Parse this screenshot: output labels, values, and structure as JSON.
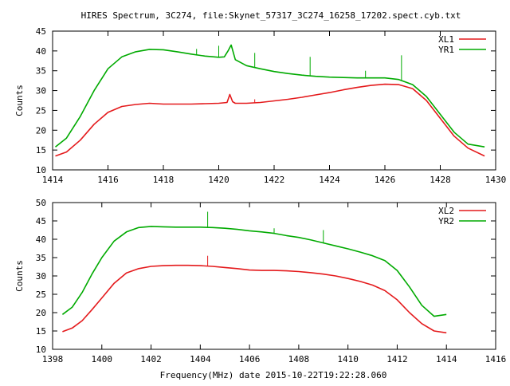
{
  "title": "HIRES Spectrum, 3C274, file:Skynet_57317_3C274_16258_17202.spect.cyb.txt",
  "xlabel": "Frequency(MHz) date 2015-10-22T19:22:28.060",
  "chart_data": [
    {
      "type": "line",
      "title": "HIRES Spectrum, 3C274, file:Skynet_57317_3C274_16258_17202.spect.cyb.txt",
      "xlabel": "",
      "ylabel": "Counts",
      "xlim": [
        1414,
        1430
      ],
      "ylim": [
        10,
        45
      ],
      "xticks": [
        1414,
        1416,
        1418,
        1420,
        1422,
        1424,
        1426,
        1428,
        1430
      ],
      "yticks": [
        10,
        15,
        20,
        25,
        30,
        35,
        40,
        45
      ],
      "legend": "top-right",
      "grid": false,
      "series": [
        {
          "name": "XL1",
          "color": "#e41a1c",
          "x": [
            1414.1,
            1414.5,
            1415.0,
            1415.5,
            1416.0,
            1416.5,
            1417.0,
            1417.5,
            1418.0,
            1418.5,
            1419.0,
            1419.5,
            1420.0,
            1420.3,
            1420.4,
            1420.5,
            1420.6,
            1421.0,
            1421.5,
            1422.0,
            1422.5,
            1423.0,
            1423.5,
            1424.0,
            1424.5,
            1425.0,
            1425.5,
            1426.0,
            1426.5,
            1427.0,
            1427.5,
            1428.0,
            1428.5,
            1429.0,
            1429.6
          ],
          "values": [
            13.5,
            14.5,
            17.5,
            21.5,
            24.5,
            26.0,
            26.5,
            26.8,
            26.6,
            26.6,
            26.6,
            26.7,
            26.8,
            27.0,
            29.0,
            27.2,
            26.8,
            26.8,
            27.0,
            27.4,
            27.8,
            28.3,
            28.9,
            29.5,
            30.2,
            30.8,
            31.3,
            31.6,
            31.5,
            30.5,
            27.5,
            23.0,
            18.5,
            15.5,
            13.5
          ]
        },
        {
          "name": "YR1",
          "color": "#00aa00",
          "x": [
            1414.1,
            1414.5,
            1415.0,
            1415.5,
            1416.0,
            1416.5,
            1417.0,
            1417.5,
            1418.0,
            1418.5,
            1419.0,
            1419.5,
            1420.0,
            1420.2,
            1420.35,
            1420.45,
            1420.6,
            1421.0,
            1421.5,
            1422.0,
            1422.5,
            1423.0,
            1423.5,
            1424.0,
            1424.5,
            1425.0,
            1425.5,
            1426.0,
            1426.5,
            1427.0,
            1427.5,
            1428.0,
            1428.5,
            1429.0,
            1429.6
          ],
          "values": [
            15.8,
            18.0,
            23.5,
            30.0,
            35.5,
            38.5,
            39.8,
            40.4,
            40.3,
            39.8,
            39.2,
            38.7,
            38.4,
            38.5,
            40.2,
            41.5,
            37.8,
            36.3,
            35.5,
            34.8,
            34.3,
            33.9,
            33.6,
            33.4,
            33.3,
            33.2,
            33.2,
            33.2,
            32.8,
            31.5,
            28.5,
            24.0,
            19.5,
            16.5,
            15.8
          ]
        }
      ],
      "spikes": [
        {
          "series": "YR1",
          "x": 1419.2,
          "top": 40.5
        },
        {
          "series": "YR1",
          "x": 1420.0,
          "top": 41.3
        },
        {
          "series": "YR1",
          "x": 1421.3,
          "top": 39.5
        },
        {
          "series": "YR1",
          "x": 1423.3,
          "top": 38.5
        },
        {
          "series": "YR1",
          "x": 1425.3,
          "top": 35.0
        },
        {
          "series": "YR1",
          "x": 1426.6,
          "top": 38.9
        },
        {
          "series": "XL1",
          "x": 1421.3,
          "top": 27.8
        }
      ]
    },
    {
      "type": "line",
      "title": "",
      "xlabel": "Frequency(MHz) date 2015-10-22T19:22:28.060",
      "ylabel": "Counts",
      "xlim": [
        1398,
        1416
      ],
      "ylim": [
        10,
        50
      ],
      "xticks": [
        1398,
        1400,
        1402,
        1404,
        1406,
        1408,
        1410,
        1412,
        1414,
        1416
      ],
      "yticks": [
        10,
        15,
        20,
        25,
        30,
        35,
        40,
        45,
        50
      ],
      "legend": "top-right",
      "grid": false,
      "series": [
        {
          "name": "XL2",
          "color": "#e41a1c",
          "x": [
            1398.4,
            1398.8,
            1399.2,
            1399.6,
            1400.0,
            1400.5,
            1401.0,
            1401.5,
            1402.0,
            1402.5,
            1403.0,
            1403.5,
            1404.0,
            1404.5,
            1405.0,
            1405.5,
            1406.0,
            1406.5,
            1407.0,
            1407.5,
            1408.0,
            1408.5,
            1409.0,
            1409.5,
            1410.0,
            1410.5,
            1411.0,
            1411.5,
            1412.0,
            1412.5,
            1413.0,
            1413.5,
            1414.0
          ],
          "values": [
            14.8,
            15.8,
            17.8,
            20.8,
            24.0,
            28.0,
            30.8,
            32.0,
            32.6,
            32.8,
            32.9,
            32.9,
            32.8,
            32.6,
            32.3,
            32.0,
            31.6,
            31.5,
            31.5,
            31.4,
            31.2,
            30.9,
            30.5,
            30.0,
            29.3,
            28.5,
            27.5,
            26.0,
            23.5,
            20.0,
            17.0,
            15.0,
            14.5
          ]
        },
        {
          "name": "YR2",
          "color": "#00aa00",
          "x": [
            1398.4,
            1398.8,
            1399.2,
            1399.6,
            1400.0,
            1400.5,
            1401.0,
            1401.5,
            1402.0,
            1402.5,
            1403.0,
            1403.5,
            1404.0,
            1404.5,
            1405.0,
            1405.5,
            1406.0,
            1406.5,
            1407.0,
            1407.5,
            1408.0,
            1408.5,
            1409.0,
            1409.5,
            1410.0,
            1410.5,
            1411.0,
            1411.5,
            1412.0,
            1412.5,
            1413.0,
            1413.5,
            1414.0
          ],
          "values": [
            19.5,
            21.5,
            25.5,
            30.5,
            35.0,
            39.5,
            42.0,
            43.2,
            43.5,
            43.4,
            43.3,
            43.3,
            43.3,
            43.2,
            43.0,
            42.7,
            42.3,
            42.0,
            41.6,
            41.0,
            40.5,
            39.8,
            39.0,
            38.2,
            37.4,
            36.5,
            35.5,
            34.2,
            31.5,
            27.0,
            22.0,
            19.0,
            19.5
          ]
        }
      ],
      "spikes": [
        {
          "series": "YR2",
          "x": 1404.3,
          "top": 47.5
        },
        {
          "series": "YR2",
          "x": 1409.0,
          "top": 42.5
        },
        {
          "series": "YR2",
          "x": 1407.0,
          "top": 43.0
        },
        {
          "series": "XL2",
          "x": 1404.3,
          "top": 35.5
        }
      ]
    }
  ]
}
